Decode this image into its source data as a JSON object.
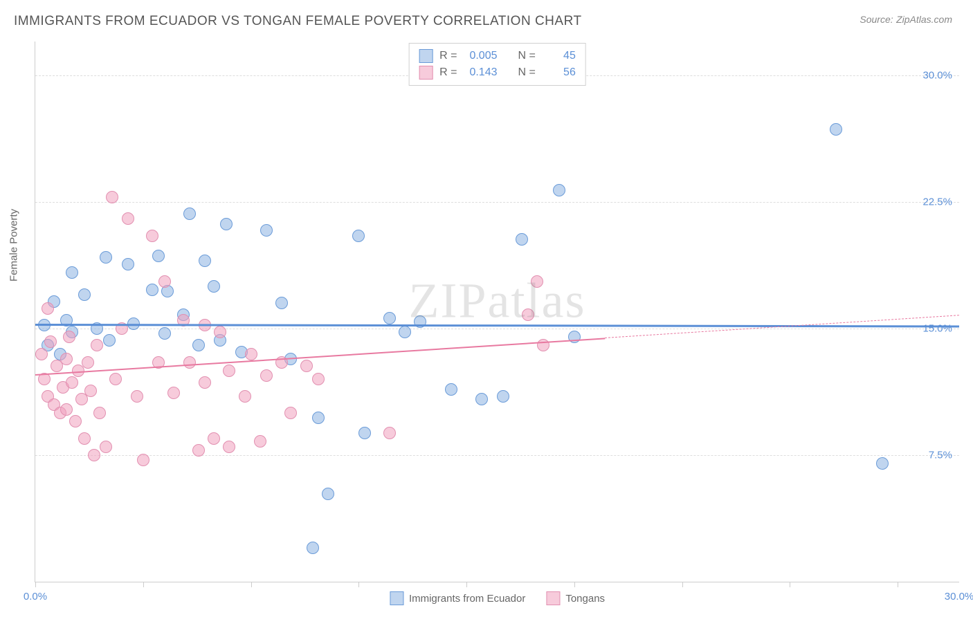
{
  "title": "IMMIGRANTS FROM ECUADOR VS TONGAN FEMALE POVERTY CORRELATION CHART",
  "source_label": "Source:",
  "source_value": "ZipAtlas.com",
  "watermark": "ZIPatlas",
  "y_axis_title": "Female Poverty",
  "chart": {
    "type": "scatter",
    "xlim": [
      0,
      30
    ],
    "ylim": [
      0,
      32
    ],
    "y_ticks": [
      7.5,
      15.0,
      22.5,
      30.0
    ],
    "y_tick_labels": [
      "7.5%",
      "15.0%",
      "22.5%",
      "30.0%"
    ],
    "x_ticks": [
      0,
      3.5,
      7,
      10.5,
      14,
      17.5,
      21,
      24.5,
      28
    ],
    "x_label_min": "0.0%",
    "x_label_max": "30.0%",
    "background_color": "#ffffff",
    "grid_color": "#dddddd",
    "series": [
      {
        "name": "Immigrants from Ecuador",
        "label": "Immigrants from Ecuador",
        "fill": "rgba(141,178,226,0.55)",
        "stroke": "#6a9bd8",
        "marker_radius": 9,
        "R": "0.005",
        "N": "45",
        "trend": {
          "y_start": 15.3,
          "y_end": 15.2,
          "solid_until_x": 30,
          "color": "#5b8fd6"
        },
        "points": [
          [
            0.3,
            15.2
          ],
          [
            0.4,
            14.0
          ],
          [
            0.6,
            16.6
          ],
          [
            0.8,
            13.5
          ],
          [
            1.0,
            15.5
          ],
          [
            1.2,
            18.3
          ],
          [
            1.2,
            14.8
          ],
          [
            1.6,
            17.0
          ],
          [
            2.0,
            15.0
          ],
          [
            2.3,
            19.2
          ],
          [
            2.4,
            14.3
          ],
          [
            3.0,
            18.8
          ],
          [
            3.2,
            15.3
          ],
          [
            3.8,
            17.3
          ],
          [
            4.0,
            19.3
          ],
          [
            4.2,
            14.7
          ],
          [
            4.3,
            17.2
          ],
          [
            4.8,
            15.8
          ],
          [
            5.0,
            21.8
          ],
          [
            5.3,
            14.0
          ],
          [
            5.5,
            19.0
          ],
          [
            5.8,
            17.5
          ],
          [
            6.0,
            14.3
          ],
          [
            6.2,
            21.2
          ],
          [
            6.7,
            13.6
          ],
          [
            7.5,
            20.8
          ],
          [
            8.0,
            16.5
          ],
          [
            8.3,
            13.2
          ],
          [
            9.0,
            2.0
          ],
          [
            9.2,
            9.7
          ],
          [
            9.5,
            5.2
          ],
          [
            10.5,
            20.5
          ],
          [
            10.7,
            8.8
          ],
          [
            11.5,
            15.6
          ],
          [
            12.0,
            14.8
          ],
          [
            12.5,
            15.4
          ],
          [
            13.5,
            11.4
          ],
          [
            14.5,
            10.8
          ],
          [
            15.8,
            20.3
          ],
          [
            15.2,
            11.0
          ],
          [
            17.0,
            23.2
          ],
          [
            17.5,
            14.5
          ],
          [
            26.0,
            26.8
          ],
          [
            27.5,
            7.0
          ]
        ]
      },
      {
        "name": "Tongans",
        "label": "Tongans",
        "fill": "rgba(240,160,190,0.55)",
        "stroke": "#e28fb0",
        "marker_radius": 9,
        "R": "0.143",
        "N": "56",
        "trend": {
          "y_start": 12.3,
          "y_end": 15.8,
          "solid_until_x": 18.5,
          "color": "#e879a0"
        },
        "points": [
          [
            0.2,
            13.5
          ],
          [
            0.3,
            12.0
          ],
          [
            0.4,
            16.2
          ],
          [
            0.4,
            11.0
          ],
          [
            0.5,
            14.2
          ],
          [
            0.6,
            10.5
          ],
          [
            0.7,
            12.8
          ],
          [
            0.8,
            10.0
          ],
          [
            0.9,
            11.5
          ],
          [
            1.0,
            13.2
          ],
          [
            1.0,
            10.2
          ],
          [
            1.1,
            14.5
          ],
          [
            1.2,
            11.8
          ],
          [
            1.3,
            9.5
          ],
          [
            1.4,
            12.5
          ],
          [
            1.5,
            10.8
          ],
          [
            1.6,
            8.5
          ],
          [
            1.7,
            13.0
          ],
          [
            1.8,
            11.3
          ],
          [
            1.9,
            7.5
          ],
          [
            2.0,
            14.0
          ],
          [
            2.1,
            10.0
          ],
          [
            2.3,
            8.0
          ],
          [
            2.5,
            22.8
          ],
          [
            2.6,
            12.0
          ],
          [
            2.8,
            15.0
          ],
          [
            3.0,
            21.5
          ],
          [
            3.3,
            11.0
          ],
          [
            3.5,
            7.2
          ],
          [
            3.8,
            20.5
          ],
          [
            4.0,
            13.0
          ],
          [
            4.2,
            17.8
          ],
          [
            4.5,
            11.2
          ],
          [
            4.8,
            15.5
          ],
          [
            5.0,
            13.0
          ],
          [
            5.3,
            7.8
          ],
          [
            5.5,
            15.2
          ],
          [
            5.5,
            11.8
          ],
          [
            5.8,
            8.5
          ],
          [
            6.0,
            14.8
          ],
          [
            6.3,
            12.5
          ],
          [
            6.3,
            8.0
          ],
          [
            6.8,
            11.0
          ],
          [
            7.0,
            13.5
          ],
          [
            7.3,
            8.3
          ],
          [
            7.5,
            12.2
          ],
          [
            8.0,
            13.0
          ],
          [
            8.3,
            10.0
          ],
          [
            8.8,
            12.8
          ],
          [
            9.2,
            12.0
          ],
          [
            11.5,
            8.8
          ],
          [
            16.3,
            17.8
          ],
          [
            16.0,
            15.8
          ],
          [
            16.5,
            14.0
          ]
        ]
      }
    ]
  },
  "legend_top": {
    "R_label": "R =",
    "N_label": "N ="
  }
}
